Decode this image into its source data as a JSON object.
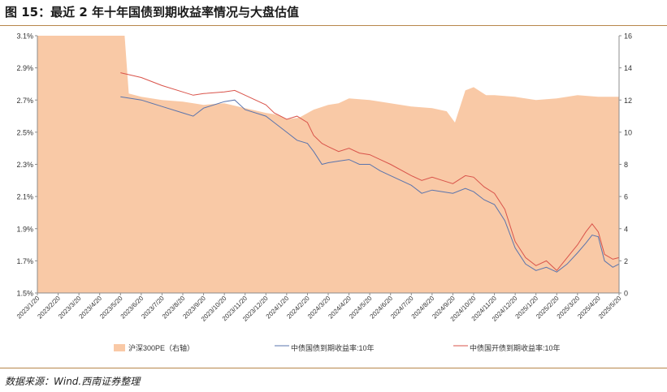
{
  "header": {
    "title": "图 15：最近 2 年十年国债到期收益率情况与大盘估值"
  },
  "footer": {
    "source": "数据来源：Wind.西南证券整理"
  },
  "colors": {
    "pe_fill": "#f9c9a6",
    "cgb_line": "#5a74ad",
    "cdb_line": "#d9534a",
    "axis": "#8c8c8c",
    "rule": "#b8864b"
  },
  "chart_data": {
    "type": "area",
    "title": "图 15：最近 2 年十年国债到期收益率情况与大盘估值",
    "xlabel": "",
    "ylabel": "",
    "x_tick_labels": [
      "2023/1/20",
      "2023/2/20",
      "2023/3/20",
      "2023/4/20",
      "2023/5/20",
      "2023/6/20",
      "2023/7/20",
      "2023/8/20",
      "2023/9/20",
      "2023/10/20",
      "2023/11/20",
      "2023/12/20",
      "2024/1/20",
      "2024/2/20",
      "2024/3/20",
      "2024/4/20",
      "2024/5/20",
      "2024/6/20",
      "2024/7/20",
      "2024/8/20",
      "2024/9/20",
      "2024/10/20",
      "2024/11/20",
      "2024/12/20",
      "2025/1/20",
      "2025/2/20",
      "2025/3/20",
      "2025/4/20",
      "2025/5/20"
    ],
    "y_left": {
      "range": [
        1.5,
        3.1
      ],
      "ticks": [
        "1.5%",
        "1.7%",
        "1.9%",
        "2.1%",
        "2.3%",
        "2.5%",
        "2.7%",
        "2.9%",
        "3.1%"
      ]
    },
    "y_right": {
      "range": [
        0,
        16
      ],
      "ticks": [
        "0",
        "2",
        "4",
        "6",
        "8",
        "10",
        "12",
        "14",
        "16"
      ]
    },
    "legend": {
      "position": "bottom"
    },
    "series": [
      {
        "name": "沪深300PE（右轴）",
        "axis": "right",
        "style": "area",
        "points": [
          [
            0,
            16
          ],
          [
            4.2,
            16
          ],
          [
            4.4,
            12.4
          ],
          [
            5,
            12.2
          ],
          [
            6,
            12
          ],
          [
            7,
            11.9
          ],
          [
            8,
            11.7
          ],
          [
            9,
            11.8
          ],
          [
            10,
            11.5
          ],
          [
            11,
            11.2
          ],
          [
            11.5,
            11.1
          ],
          [
            12,
            10.8
          ],
          [
            12.6,
            10.9
          ],
          [
            13.3,
            11.4
          ],
          [
            14,
            11.7
          ],
          [
            14.5,
            11.8
          ],
          [
            15,
            12.1
          ],
          [
            16,
            12.0
          ],
          [
            17,
            11.8
          ],
          [
            18,
            11.6
          ],
          [
            19,
            11.5
          ],
          [
            19.7,
            11.3
          ],
          [
            20.1,
            10.6
          ],
          [
            20.6,
            12.6
          ],
          [
            21,
            12.8
          ],
          [
            21.6,
            12.3
          ],
          [
            22,
            12.3
          ],
          [
            23,
            12.2
          ],
          [
            24,
            12.0
          ],
          [
            25,
            12.1
          ],
          [
            26,
            12.3
          ],
          [
            27,
            12.2
          ],
          [
            28,
            12.2
          ]
        ]
      },
      {
        "name": "中债国债到期收益率:10年",
        "axis": "left",
        "style": "line",
        "points": [
          [
            4,
            2.72
          ],
          [
            5,
            2.7
          ],
          [
            6,
            2.66
          ],
          [
            7,
            2.62
          ],
          [
            7.5,
            2.6
          ],
          [
            8,
            2.65
          ],
          [
            9,
            2.69
          ],
          [
            9.5,
            2.7
          ],
          [
            10,
            2.64
          ],
          [
            11,
            2.6
          ],
          [
            11.4,
            2.56
          ],
          [
            12,
            2.5
          ],
          [
            12.5,
            2.45
          ],
          [
            13,
            2.43
          ],
          [
            13.3,
            2.38
          ],
          [
            13.7,
            2.3
          ],
          [
            14,
            2.31
          ],
          [
            14.5,
            2.32
          ],
          [
            15,
            2.33
          ],
          [
            15.5,
            2.3
          ],
          [
            16,
            2.3
          ],
          [
            16.5,
            2.26
          ],
          [
            17,
            2.23
          ],
          [
            18,
            2.17
          ],
          [
            18.5,
            2.12
          ],
          [
            19,
            2.14
          ],
          [
            19.5,
            2.13
          ],
          [
            20,
            2.12
          ],
          [
            20.6,
            2.15
          ],
          [
            21,
            2.13
          ],
          [
            21.5,
            2.08
          ],
          [
            22,
            2.05
          ],
          [
            22.5,
            1.95
          ],
          [
            23,
            1.78
          ],
          [
            23.5,
            1.68
          ],
          [
            24,
            1.64
          ],
          [
            24.5,
            1.66
          ],
          [
            25,
            1.63
          ],
          [
            25.5,
            1.68
          ],
          [
            26,
            1.75
          ],
          [
            26.4,
            1.81
          ],
          [
            26.7,
            1.86
          ],
          [
            27,
            1.85
          ],
          [
            27.3,
            1.7
          ],
          [
            27.7,
            1.66
          ],
          [
            28,
            1.68
          ]
        ]
      },
      {
        "name": "中债国开债到期收益率:10年",
        "axis": "left",
        "style": "line",
        "points": [
          [
            4,
            2.87
          ],
          [
            5,
            2.84
          ],
          [
            6,
            2.79
          ],
          [
            7,
            2.75
          ],
          [
            7.5,
            2.73
          ],
          [
            8,
            2.74
          ],
          [
            9,
            2.75
          ],
          [
            9.5,
            2.76
          ],
          [
            10,
            2.73
          ],
          [
            11,
            2.67
          ],
          [
            11.4,
            2.62
          ],
          [
            12,
            2.58
          ],
          [
            12.5,
            2.6
          ],
          [
            13,
            2.56
          ],
          [
            13.3,
            2.48
          ],
          [
            13.7,
            2.43
          ],
          [
            14,
            2.41
          ],
          [
            14.5,
            2.38
          ],
          [
            15,
            2.4
          ],
          [
            15.5,
            2.37
          ],
          [
            16,
            2.36
          ],
          [
            16.5,
            2.33
          ],
          [
            17,
            2.3
          ],
          [
            18,
            2.23
          ],
          [
            18.5,
            2.2
          ],
          [
            19,
            2.22
          ],
          [
            19.5,
            2.2
          ],
          [
            20,
            2.18
          ],
          [
            20.6,
            2.23
          ],
          [
            21,
            2.22
          ],
          [
            21.5,
            2.16
          ],
          [
            22,
            2.12
          ],
          [
            22.5,
            2.02
          ],
          [
            23,
            1.82
          ],
          [
            23.5,
            1.72
          ],
          [
            24,
            1.67
          ],
          [
            24.5,
            1.7
          ],
          [
            25,
            1.64
          ],
          [
            25.5,
            1.72
          ],
          [
            26,
            1.8
          ],
          [
            26.4,
            1.88
          ],
          [
            26.7,
            1.93
          ],
          [
            27,
            1.88
          ],
          [
            27.3,
            1.74
          ],
          [
            27.7,
            1.71
          ],
          [
            28,
            1.72
          ]
        ]
      }
    ]
  }
}
